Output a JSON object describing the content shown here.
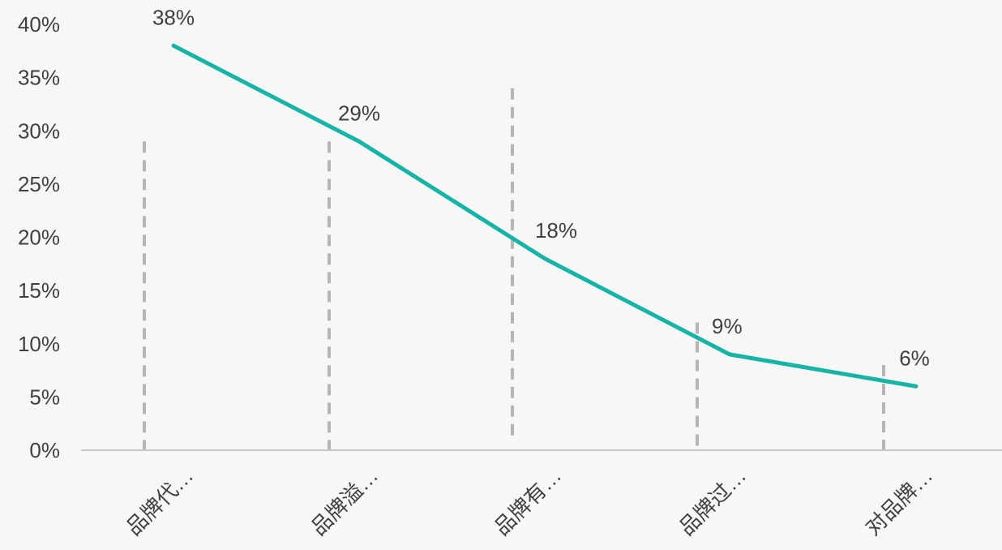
{
  "chart_data": {
    "type": "line",
    "categories": [
      "品牌代…",
      "品牌溢…",
      "品牌有…",
      "品牌过…",
      "对品牌…"
    ],
    "series": [
      {
        "values": [
          38,
          29,
          18,
          9,
          6
        ],
        "data_labels": [
          "38%",
          "29%",
          "18%",
          "9%",
          "6%"
        ]
      }
    ],
    "y_ticks": [
      "0%",
      "5%",
      "10%",
      "15%",
      "20%",
      "25%",
      "30%",
      "35%",
      "40%"
    ],
    "ylim": [
      0,
      40
    ],
    "dashed_markers": [
      29,
      29,
      34,
      12,
      8
    ],
    "title": "",
    "xlabel": "",
    "ylabel": "",
    "grid": false,
    "colors": {
      "line": "#16b3a6",
      "dashed": "#b5b5b5",
      "axis": "#c8c8c8",
      "text": "#404040",
      "background": "#f7f7f7"
    }
  }
}
